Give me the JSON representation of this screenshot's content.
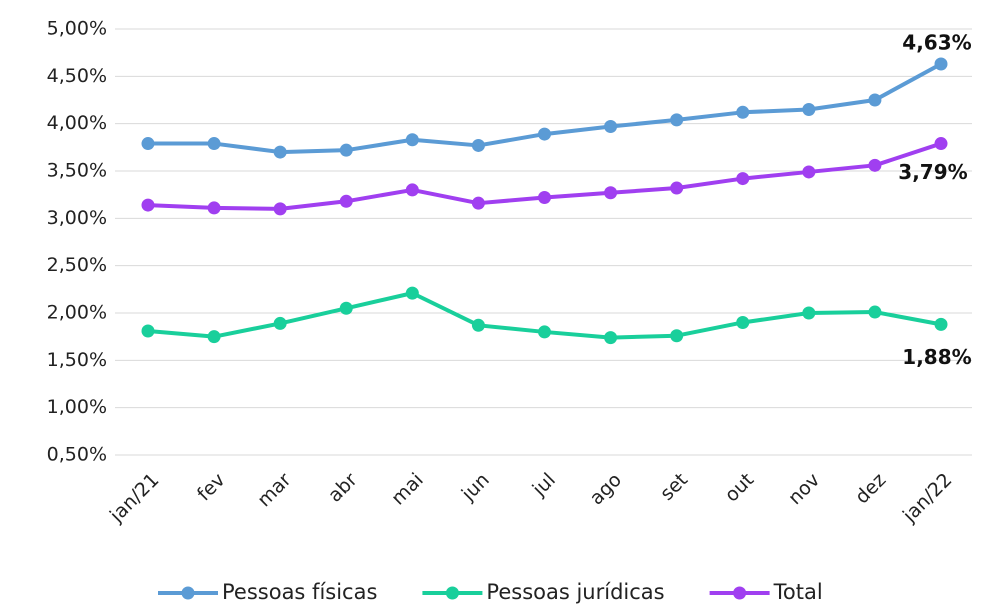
{
  "chart_data": {
    "type": "line",
    "categories": [
      "jan/21",
      "fev",
      "mar",
      "abr",
      "mai",
      "jun",
      "jul",
      "ago",
      "set",
      "out",
      "nov",
      "dez",
      "jan/22"
    ],
    "ylim": [
      0.5,
      5.0
    ],
    "yticks": [
      {
        "value": 0.5,
        "label": "0,50%"
      },
      {
        "value": 1.0,
        "label": "1,00%"
      },
      {
        "value": 1.5,
        "label": "1,50%"
      },
      {
        "value": 2.0,
        "label": "2,00%"
      },
      {
        "value": 2.5,
        "label": "2,50%"
      },
      {
        "value": 3.0,
        "label": "3,00%"
      },
      {
        "value": 3.5,
        "label": "3,50%"
      },
      {
        "value": 4.0,
        "label": "4,00%"
      },
      {
        "value": 4.5,
        "label": "4,50%"
      },
      {
        "value": 5.0,
        "label": "5,00%"
      }
    ],
    "grid": true,
    "legend": "bottom",
    "series": [
      {
        "name": "Pessoas físicas",
        "color": "#5b9bd5",
        "values": [
          3.79,
          3.79,
          3.7,
          3.72,
          3.83,
          3.77,
          3.89,
          3.97,
          4.04,
          4.12,
          4.15,
          4.25,
          4.63
        ],
        "value_labels": [
          null,
          null,
          null,
          null,
          null,
          null,
          null,
          null,
          null,
          null,
          null,
          null,
          "4,63%"
        ]
      },
      {
        "name": "Pessoas jurídicas",
        "color": "#19cf9b",
        "values": [
          1.81,
          1.75,
          1.89,
          2.05,
          2.21,
          1.87,
          1.8,
          1.74,
          1.76,
          1.9,
          2.0,
          2.01,
          1.88
        ],
        "value_labels": [
          null,
          null,
          null,
          null,
          null,
          null,
          null,
          null,
          null,
          null,
          null,
          null,
          "1,88%"
        ]
      },
      {
        "name": "Total",
        "color": "#a03ff0",
        "values": [
          3.14,
          3.11,
          3.1,
          3.18,
          3.3,
          3.16,
          3.22,
          3.27,
          3.32,
          3.42,
          3.49,
          3.56,
          3.79
        ],
        "value_labels": [
          null,
          null,
          null,
          null,
          null,
          null,
          null,
          null,
          null,
          null,
          null,
          null,
          "3,79%"
        ]
      }
    ]
  }
}
